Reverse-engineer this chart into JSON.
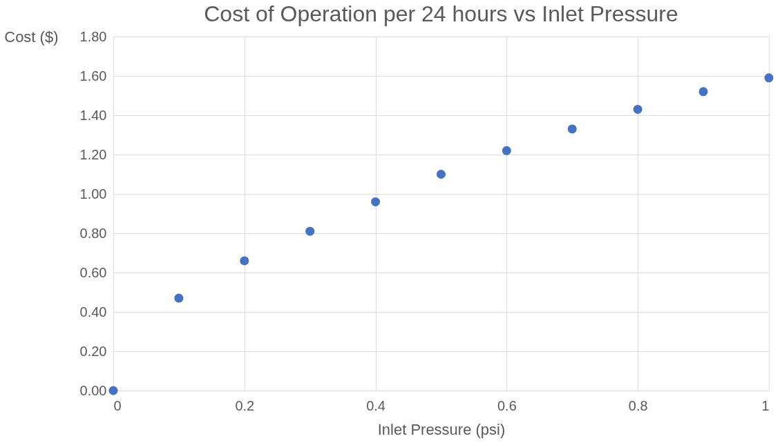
{
  "chart_data": {
    "type": "scatter",
    "title": "Cost of Operation per 24 hours vs Inlet Pressure",
    "xlabel": "Inlet Pressure (psi)",
    "ylabel": "Cost ($)",
    "x": [
      0,
      0.1,
      0.2,
      0.3,
      0.4,
      0.5,
      0.6,
      0.7,
      0.8,
      0.9,
      1.0
    ],
    "series": [
      {
        "color": "#4472c4",
        "values": [
          0,
          0.47,
          0.66,
          0.81,
          0.96,
          1.1,
          1.22,
          1.33,
          1.43,
          1.52,
          1.59
        ]
      }
    ],
    "xlim": [
      0,
      1
    ],
    "xticks": [
      0,
      0.2,
      0.4,
      0.6,
      0.8,
      1
    ],
    "ylim": [
      0,
      1.8
    ],
    "yticks": [
      {
        "value": 0,
        "label": "0.00"
      },
      {
        "value": 0.2,
        "label": "0.20"
      },
      {
        "value": 0.4,
        "label": "0.40"
      },
      {
        "value": 0.6,
        "label": "0.60"
      },
      {
        "value": 0.8,
        "label": "0.80"
      },
      {
        "value": 1.0,
        "label": "1.00"
      },
      {
        "value": 1.2,
        "label": "1.20"
      },
      {
        "value": 1.4,
        "label": "1.40"
      },
      {
        "value": 1.6,
        "label": "1.60"
      },
      {
        "value": 1.8,
        "label": "1.80"
      }
    ],
    "grid": true,
    "marker": "circle"
  }
}
